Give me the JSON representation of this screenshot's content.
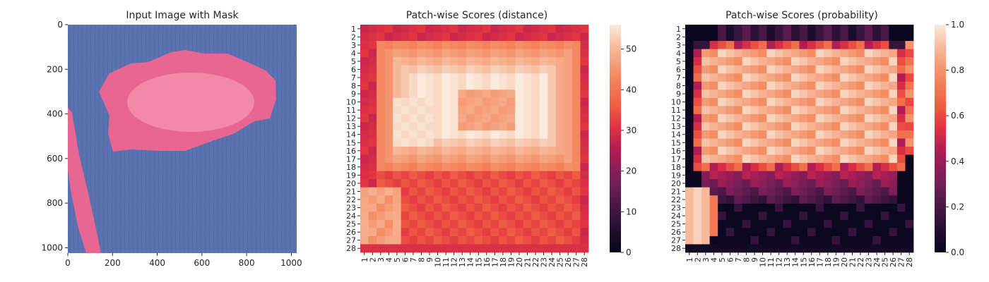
{
  "chart_data": [
    {
      "type": "image",
      "title": "Input Image with Mask",
      "x_ticks": [
        0,
        200,
        400,
        600,
        800,
        1000
      ],
      "y_ticks": [
        0,
        200,
        400,
        600,
        800,
        1000
      ],
      "xlim": [
        0,
        1024
      ],
      "ylim": [
        1024,
        0
      ],
      "colors": {
        "background": "#5b73b0",
        "mask": "#f2668f",
        "mask_highlight": "#ffd0df"
      }
    },
    {
      "type": "heatmap",
      "title": "Patch-wise Scores (distance)",
      "x_labels": [
        "1",
        "2",
        "3",
        "4",
        "5",
        "6",
        "7",
        "8",
        "9",
        "10",
        "11",
        "12",
        "13",
        "14",
        "15",
        "16",
        "17",
        "18",
        "19",
        "20",
        "21",
        "22",
        "23",
        "24",
        "25",
        "26",
        "27",
        "28"
      ],
      "y_labels": [
        "1",
        "2",
        "3",
        "4",
        "5",
        "6",
        "7",
        "8",
        "9",
        "10",
        "11",
        "12",
        "13",
        "14",
        "15",
        "16",
        "17",
        "18",
        "19",
        "20",
        "21",
        "22",
        "23",
        "24",
        "25",
        "26",
        "27",
        "28"
      ],
      "colorbar_ticks": [
        0,
        10,
        20,
        30,
        40,
        50
      ],
      "vmin": 0,
      "vmax": 56,
      "colormap": "rocket"
    },
    {
      "type": "heatmap",
      "title": "Patch-wise Scores (probability)",
      "x_labels": [
        "1",
        "2",
        "3",
        "4",
        "5",
        "6",
        "7",
        "8",
        "9",
        "10",
        "11",
        "12",
        "13",
        "14",
        "15",
        "16",
        "17",
        "18",
        "19",
        "20",
        "21",
        "22",
        "23",
        "24",
        "25",
        "26",
        "27",
        "28"
      ],
      "y_labels": [
        "1",
        "2",
        "3",
        "4",
        "5",
        "6",
        "7",
        "8",
        "9",
        "10",
        "11",
        "12",
        "13",
        "14",
        "15",
        "16",
        "17",
        "18",
        "19",
        "20",
        "21",
        "22",
        "23",
        "24",
        "25",
        "26",
        "27",
        "28"
      ],
      "colorbar_ticks": [
        "0.0",
        "0.2",
        "0.4",
        "0.6",
        "0.8",
        "1.0"
      ],
      "vmin": 0,
      "vmax": 1,
      "colormap": "rocket"
    }
  ]
}
